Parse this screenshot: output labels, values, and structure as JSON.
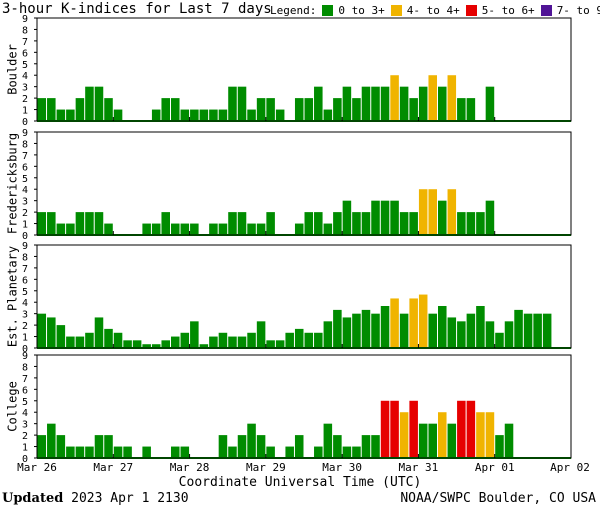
{
  "title": "3-hour K-indices for Last 7 days",
  "legend": {
    "label": "Legend:",
    "items": [
      {
        "label": "0 to 3+",
        "color": "#008c00"
      },
      {
        "label": "4- to 4+",
        "color": "#f0b400"
      },
      {
        "label": "5- to 6+",
        "color": "#e60000"
      },
      {
        "label": "7- to 9",
        "color": "#501496"
      }
    ]
  },
  "footer": {
    "updated_label": "Updated",
    "updated_value": "2023 Apr  1 2130",
    "source": "NOAA/SWPC Boulder, CO USA"
  },
  "chart_data": {
    "type": "bar",
    "xlabel": "Coordinate Universal Time (UTC)",
    "x_ticks": [
      "Mar 26",
      "Mar 27",
      "Mar 28",
      "Mar 29",
      "Mar 30",
      "Mar 31",
      "Apr 01",
      "Apr 02"
    ],
    "ylim": [
      0,
      9
    ],
    "y_ticks": [
      0,
      1,
      2,
      3,
      4,
      5,
      6,
      7,
      8,
      9
    ],
    "color_thresholds": {
      "green_max": 3.67,
      "yellow_max": 4.67,
      "red_max": 6.67
    },
    "series": [
      {
        "name": "Boulder",
        "values": [
          2,
          2,
          1,
          1,
          2,
          3,
          3,
          2,
          1,
          0,
          0,
          0,
          1,
          2,
          2,
          1,
          1,
          1,
          1,
          1,
          3,
          3,
          1,
          2,
          2,
          1,
          0,
          2,
          2,
          3,
          1,
          2,
          3,
          2,
          3,
          3,
          3,
          4,
          3,
          2,
          3,
          4,
          3,
          4,
          2,
          2,
          0,
          3,
          0,
          0,
          0,
          0,
          0,
          0,
          0,
          0
        ]
      },
      {
        "name": "Fredericksburg",
        "values": [
          2,
          2,
          1,
          1,
          2,
          2,
          2,
          1,
          0,
          0,
          0,
          1,
          1,
          2,
          1,
          1,
          1,
          0,
          1,
          1,
          2,
          2,
          1,
          1,
          2,
          0,
          0,
          1,
          2,
          2,
          1,
          2,
          3,
          2,
          2,
          3,
          3,
          3,
          2,
          2,
          4,
          4,
          3,
          4,
          2,
          2,
          2,
          3,
          0,
          0,
          0,
          0,
          0,
          0,
          0,
          0
        ]
      },
      {
        "name": "Est. Planetary",
        "values": [
          3,
          2.67,
          2,
          1,
          1,
          1.33,
          2.67,
          1.67,
          1.33,
          0.67,
          0.67,
          0.33,
          0.33,
          0.67,
          1,
          1.33,
          2.33,
          0.33,
          1,
          1.33,
          1,
          1,
          1.33,
          2.33,
          0.67,
          0.67,
          1.33,
          1.67,
          1.33,
          1.33,
          2.33,
          3.33,
          2.67,
          3,
          3.33,
          3,
          3.67,
          4.33,
          3,
          4.33,
          4.67,
          3,
          3.67,
          2.67,
          2.33,
          3,
          3.67,
          2.33,
          1.33,
          2.33,
          3.33,
          3,
          3,
          3,
          0,
          0
        ]
      },
      {
        "name": "College",
        "values": [
          2,
          3,
          2,
          1,
          1,
          1,
          2,
          2,
          1,
          1,
          0,
          1,
          0,
          0,
          1,
          1,
          0,
          0,
          0,
          2,
          1,
          2,
          3,
          2,
          1,
          0,
          1,
          2,
          0,
          1,
          3,
          2,
          1,
          1,
          2,
          2,
          5,
          5,
          4,
          5,
          3,
          3,
          4,
          3,
          5,
          5,
          4,
          4,
          2,
          3,
          0,
          0,
          0,
          0,
          0,
          0
        ]
      }
    ]
  }
}
